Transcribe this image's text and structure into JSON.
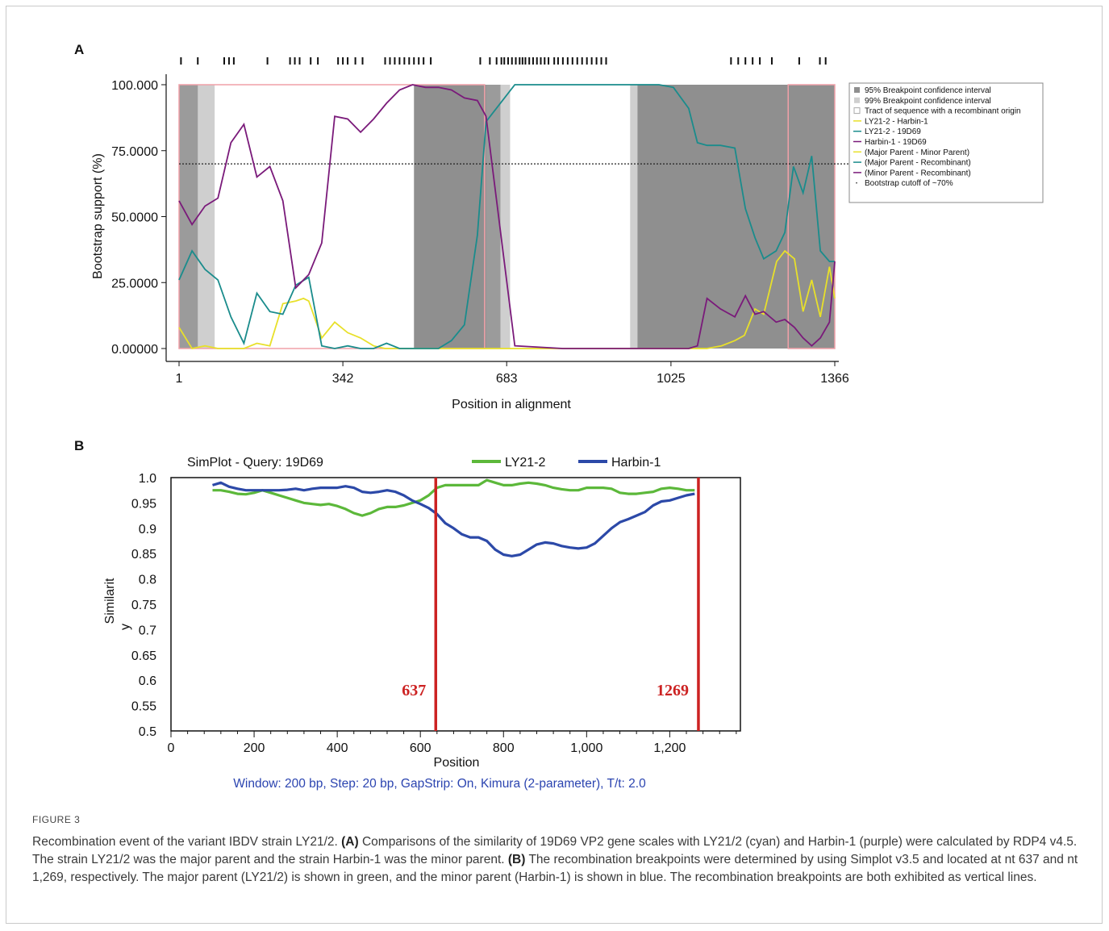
{
  "charts": {
    "panel_a": {
      "panel_label": "A",
      "y_tick_labels": [
        "100.000",
        "75.0000",
        "50.0000",
        "25.0000",
        "0.00000"
      ],
      "x_tick_labels": [
        "1",
        "342",
        "683",
        "1025",
        "1366"
      ],
      "ylabel": "Bootstrap support (%)",
      "xlabel": "Position in alignment",
      "legend": [
        "95% Breakpoint confidence interval",
        "99% Breakpoint confidence interval",
        "Tract of sequence with a recombinant origin",
        "LY21-2 - Harbin-1",
        "LY21-2 - 19D69",
        "Harbin-1 - 19D69",
        "(Major Parent - Minor Parent)",
        "(Major Parent - Recombinant)",
        "(Minor Parent - Recombinant)",
        "Bootstrap cutoff of ~70%"
      ]
    },
    "panel_b": {
      "panel_label": "B",
      "title": "SimPlot - Query: 19D69",
      "legend": [
        "LY21-2",
        "Harbin-1"
      ],
      "y_tick_labels": [
        "1.0",
        "0.95",
        "0.9",
        "0.85",
        "0.8",
        "0.75",
        "0.7",
        "0.65",
        "0.6",
        "0.55",
        "0.5"
      ],
      "x_tick_labels": [
        "0",
        "200",
        "400",
        "600",
        "800",
        "1,000",
        "1,200"
      ],
      "ylabel_line1": "Similarit",
      "ylabel_line2": "y",
      "xlabel": "Position",
      "footer": "Window: 200 bp, Step: 20 bp, GapStrip: On, Kimura (2-parameter), T/t: 2.0",
      "breakpoint_labels": [
        "637",
        "1269"
      ]
    }
  },
  "caption": {
    "label": "FIGURE 3",
    "parts": [
      {
        "t": "Recombination event of the variant IBDV strain LY21/2. ",
        "b": false
      },
      {
        "t": "(A)",
        "b": true
      },
      {
        "t": " Comparisons of the similarity of 19D69 VP2 gene scales with LY21/2 (cyan) and Harbin-1 (purple) were calculated by RDP4 v4.5. The strain LY21/2 was the major parent and the strain Harbin-1 was the minor parent. ",
        "b": false
      },
      {
        "t": "(B)",
        "b": true
      },
      {
        "t": " The recombination breakpoints were determined by using Simplot v3.5 and located at nt 637 and nt 1,269, respectively. The major parent (LY21/2) is shown in green, and the minor parent (Harbin-1) is shown in blue. The recombination breakpoints are both exhibited as vertical lines.",
        "b": false
      }
    ]
  },
  "chart_data": [
    {
      "type": "line",
      "panel": "A",
      "xlabel": "Position in alignment",
      "ylabel": "Bootstrap support (%)",
      "xlim": [
        1,
        1366
      ],
      "ylim": [
        0,
        100
      ],
      "x_ticks": [
        1,
        342,
        683,
        1025,
        1366
      ],
      "y_ticks": [
        0,
        25,
        50,
        75,
        100
      ],
      "cutoff": 70,
      "shaded_99": [
        [
          40,
          75
        ],
        [
          490,
          640
        ],
        [
          670,
          690
        ],
        [
          955,
          1270
        ],
        [
          1270,
          1366
        ]
      ],
      "shaded_95": [
        [
          1,
          1366
        ]
      ],
      "recombinant_tract": [
        [
          1,
          637
        ],
        [
          1269,
          1366
        ]
      ],
      "informative_sites": [
        5,
        40,
        95,
        105,
        115,
        185,
        232,
        242,
        252,
        275,
        290,
        332,
        342,
        352,
        368,
        383,
        430,
        440,
        450,
        460,
        470,
        480,
        490,
        500,
        510,
        525,
        628,
        648,
        662,
        672,
        678,
        686,
        694,
        702,
        710,
        716,
        722,
        730,
        738,
        746,
        754,
        762,
        770,
        782,
        790,
        800,
        810,
        820,
        830,
        840,
        850,
        860,
        870,
        880,
        890,
        1150,
        1165,
        1180,
        1195,
        1210,
        1235,
        1292,
        1335,
        1347
      ],
      "series": [
        {
          "name": "LY21-2 - Harbin-1",
          "color": "#e8e02a",
          "x": [
            1,
            28,
            55,
            82,
            109,
            136,
            163,
            190,
            217,
            244,
            260,
            271,
            298,
            325,
            352,
            379,
            406,
            430,
            460,
            500,
            600,
            700,
            800,
            900,
            1000,
            1100,
            1130,
            1158,
            1178,
            1200,
            1218,
            1245,
            1262,
            1282,
            1300,
            1318,
            1336,
            1355,
            1366
          ],
          "y": [
            8,
            0,
            1,
            0,
            0,
            0,
            2,
            1,
            17,
            18,
            19,
            18,
            4,
            10,
            6,
            4,
            1,
            0,
            0,
            0,
            0,
            0,
            0,
            0,
            0,
            0,
            1,
            3,
            5,
            15,
            13,
            33,
            37,
            34,
            14,
            26,
            12,
            31,
            19
          ]
        },
        {
          "name": "LY21-2 - 19D69",
          "color": "#1a8c8c",
          "x": [
            1,
            28,
            55,
            82,
            109,
            136,
            163,
            190,
            217,
            244,
            271,
            298,
            325,
            352,
            379,
            406,
            433,
            460,
            487,
            514,
            541,
            568,
            595,
            622,
            640,
            700,
            800,
            900,
            1000,
            1030,
            1062,
            1080,
            1100,
            1128,
            1158,
            1180,
            1200,
            1218,
            1244,
            1262,
            1280,
            1300,
            1318,
            1336,
            1355,
            1366
          ],
          "y": [
            26,
            37,
            30,
            26,
            12,
            2,
            21,
            14,
            13,
            24,
            27,
            1,
            0,
            1,
            0,
            0,
            2,
            0,
            0,
            0,
            0,
            3,
            9,
            43,
            86,
            100,
            100,
            100,
            100,
            99,
            91,
            78,
            77,
            77,
            76,
            53,
            42,
            34,
            37,
            44,
            69,
            59,
            73,
            37,
            33,
            33
          ]
        },
        {
          "name": "Harbin-1 - 19D69",
          "color": "#7a1a7a",
          "x": [
            1,
            28,
            55,
            82,
            109,
            136,
            163,
            190,
            217,
            244,
            271,
            298,
            325,
            352,
            379,
            406,
            433,
            460,
            487,
            514,
            541,
            568,
            595,
            622,
            640,
            700,
            800,
            900,
            1000,
            1040,
            1062,
            1080,
            1100,
            1128,
            1158,
            1180,
            1200,
            1218,
            1244,
            1262,
            1282,
            1300,
            1318,
            1336,
            1355,
            1366
          ],
          "y": [
            56,
            47,
            54,
            57,
            78,
            85,
            65,
            69,
            56,
            23,
            28,
            40,
            88,
            87,
            82,
            87,
            93,
            98,
            100,
            99,
            99,
            98,
            95,
            94,
            88,
            1,
            0,
            0,
            0,
            0,
            0,
            1,
            19,
            15,
            12,
            20,
            13,
            14,
            10,
            11,
            8,
            4,
            1,
            4,
            10,
            33
          ]
        }
      ]
    },
    {
      "type": "line",
      "panel": "B",
      "title": "SimPlot - Query: 19D69",
      "xlabel": "Position",
      "ylabel": "Similarity",
      "xlim": [
        0,
        1370
      ],
      "ylim": [
        0.5,
        1.0
      ],
      "breakpoints": [
        637,
        1269
      ],
      "series": [
        {
          "name": "LY21-2",
          "color": "#5cb83a",
          "x": [
            100,
            120,
            140,
            160,
            180,
            200,
            220,
            240,
            260,
            280,
            300,
            320,
            340,
            360,
            380,
            400,
            420,
            440,
            460,
            480,
            500,
            520,
            540,
            560,
            580,
            600,
            620,
            640,
            660,
            680,
            700,
            720,
            740,
            760,
            780,
            800,
            820,
            840,
            860,
            880,
            900,
            920,
            940,
            960,
            980,
            1000,
            1020,
            1040,
            1060,
            1080,
            1100,
            1120,
            1140,
            1160,
            1180,
            1200,
            1220,
            1240,
            1260
          ],
          "y": [
            0.975,
            0.975,
            0.972,
            0.968,
            0.967,
            0.97,
            0.975,
            0.97,
            0.965,
            0.96,
            0.955,
            0.95,
            0.948,
            0.946,
            0.948,
            0.944,
            0.938,
            0.93,
            0.925,
            0.93,
            0.938,
            0.942,
            0.942,
            0.945,
            0.95,
            0.955,
            0.965,
            0.98,
            0.985,
            0.985,
            0.985,
            0.985,
            0.985,
            0.995,
            0.99,
            0.985,
            0.985,
            0.988,
            0.99,
            0.988,
            0.985,
            0.98,
            0.977,
            0.975,
            0.975,
            0.98,
            0.98,
            0.98,
            0.978,
            0.97,
            0.968,
            0.968,
            0.97,
            0.972,
            0.978,
            0.98,
            0.978,
            0.975,
            0.975
          ]
        },
        {
          "name": "Harbin-1",
          "color": "#2c49a8",
          "x": [
            100,
            120,
            140,
            160,
            180,
            200,
            220,
            240,
            260,
            280,
            300,
            320,
            340,
            360,
            380,
            400,
            420,
            440,
            460,
            480,
            500,
            520,
            540,
            560,
            580,
            600,
            620,
            640,
            660,
            680,
            700,
            720,
            740,
            760,
            780,
            800,
            820,
            840,
            860,
            880,
            900,
            920,
            940,
            960,
            980,
            1000,
            1020,
            1040,
            1060,
            1080,
            1100,
            1120,
            1140,
            1160,
            1180,
            1200,
            1220,
            1240,
            1260
          ],
          "y": [
            0.985,
            0.99,
            0.982,
            0.978,
            0.975,
            0.975,
            0.975,
            0.975,
            0.975,
            0.976,
            0.978,
            0.975,
            0.978,
            0.98,
            0.98,
            0.98,
            0.983,
            0.98,
            0.972,
            0.97,
            0.972,
            0.975,
            0.972,
            0.965,
            0.955,
            0.948,
            0.94,
            0.928,
            0.91,
            0.9,
            0.888,
            0.882,
            0.882,
            0.875,
            0.858,
            0.848,
            0.845,
            0.848,
            0.858,
            0.868,
            0.872,
            0.87,
            0.865,
            0.862,
            0.86,
            0.862,
            0.87,
            0.885,
            0.9,
            0.912,
            0.918,
            0.925,
            0.932,
            0.945,
            0.953,
            0.955,
            0.96,
            0.965,
            0.968
          ]
        }
      ]
    }
  ]
}
